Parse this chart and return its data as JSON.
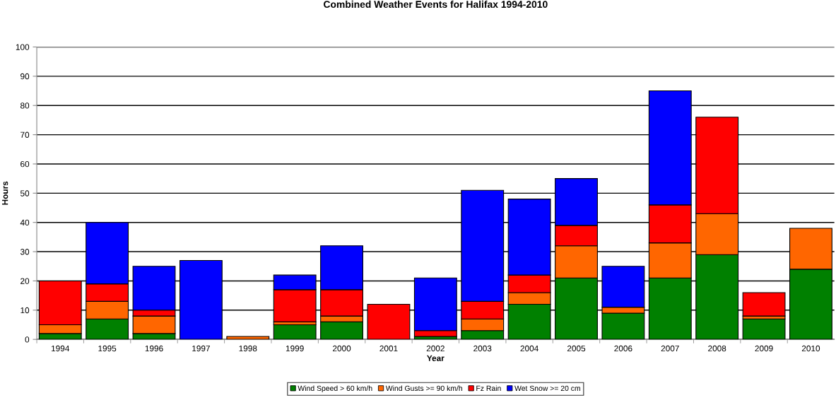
{
  "chart_data": {
    "type": "bar",
    "stacked": true,
    "title": "Combined Weather Events for Halifax 1994-2010",
    "xlabel": "Year",
    "ylabel": "Hours",
    "categories": [
      "1994",
      "1995",
      "1996",
      "1997",
      "1998",
      "1999",
      "2000",
      "2001",
      "2002",
      "2003",
      "2004",
      "2005",
      "2006",
      "2007",
      "2008",
      "2009",
      "2010"
    ],
    "series": [
      {
        "name": "Wind Speed > 60 km/h",
        "color": "#008000",
        "values": [
          2,
          7,
          2,
          0,
          0,
          5,
          6,
          0,
          1,
          3,
          12,
          21,
          9,
          21,
          29,
          7,
          24
        ]
      },
      {
        "name": "Wind Gusts >= 90 km/h",
        "color": "#ff6600",
        "values": [
          3,
          6,
          6,
          0,
          1,
          1,
          2,
          0,
          0,
          4,
          4,
          11,
          2,
          12,
          14,
          1,
          14
        ]
      },
      {
        "name": "Fz Rain",
        "color": "#ff0000",
        "values": [
          15,
          6,
          2,
          0,
          0,
          11,
          9,
          12,
          2,
          6,
          6,
          7,
          0,
          13,
          33,
          8,
          0
        ]
      },
      {
        "name": "Wet Snow >= 20 cm",
        "color": "#0000ff",
        "values": [
          0,
          21,
          15,
          27,
          0,
          5,
          15,
          0,
          18,
          38,
          26,
          16,
          14,
          39,
          0,
          0,
          0
        ]
      }
    ],
    "ylim": [
      0,
      100
    ],
    "yticks": [
      0,
      10,
      20,
      30,
      40,
      50,
      60,
      70,
      80,
      90,
      100
    ],
    "grid": "y",
    "legend": "bottom"
  }
}
